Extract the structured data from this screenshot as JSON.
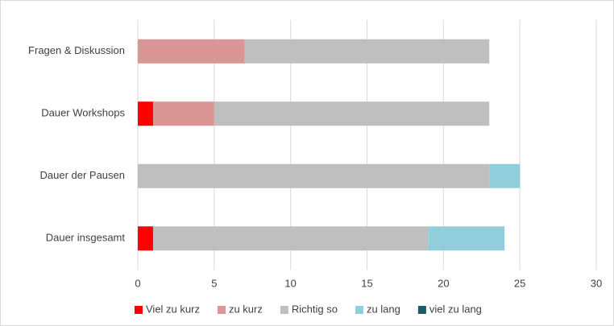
{
  "chart_data": {
    "type": "stacked_barh",
    "categories": [
      "Fragen & Diskussion",
      "Dauer Workshops",
      "Dauer der Pausen",
      "Dauer insgesamt"
    ],
    "series": [
      {
        "name": "Viel zu kurz",
        "color": "#ff0000",
        "values": [
          0,
          1,
          0,
          1
        ]
      },
      {
        "name": "zu kurz",
        "color": "#da9694",
        "values": [
          7,
          4,
          0,
          0
        ]
      },
      {
        "name": "Richtig so",
        "color": "#bfbfbf",
        "values": [
          16,
          18,
          23,
          18
        ]
      },
      {
        "name": "zu lang",
        "color": "#92cddc",
        "values": [
          0,
          0,
          2,
          5
        ]
      },
      {
        "name": "viel zu lang",
        "color": "#215967",
        "values": [
          0,
          0,
          0,
          0
        ]
      }
    ],
    "xlim": [
      0,
      30
    ],
    "xticks": [
      0,
      5,
      10,
      15,
      20,
      25,
      30
    ],
    "grid": true,
    "legend": "bottom"
  }
}
